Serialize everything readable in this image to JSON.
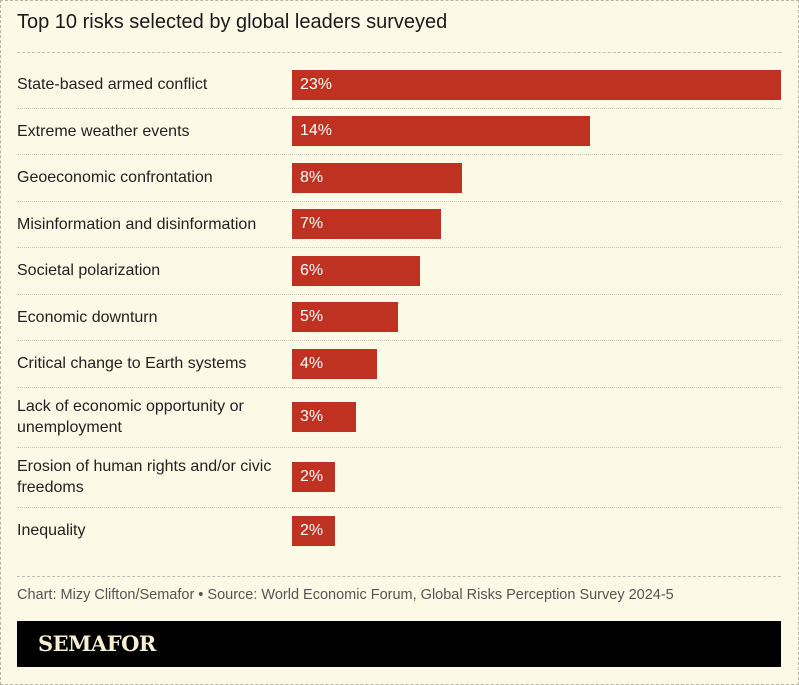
{
  "chart_data": {
    "type": "bar",
    "orientation": "horizontal",
    "title": "Top 10 risks selected by global leaders surveyed",
    "categories": [
      "State-based armed conflict",
      "Extreme weather events",
      "Geoeconomic confrontation",
      "Misinformation and disinformation",
      "Societal polarization",
      "Economic downturn",
      "Critical change to Earth systems",
      "Lack of economic opportunity or unemployment",
      "Erosion of human rights and/or civic freedoms",
      "Inequality"
    ],
    "values": [
      23,
      14,
      8,
      7,
      6,
      5,
      4,
      3,
      2,
      2
    ],
    "value_labels": [
      "23%",
      "14%",
      "8%",
      "7%",
      "6%",
      "5%",
      "4%",
      "3%",
      "2%",
      "2%"
    ],
    "unit": "%",
    "bar_color": "#bf3222",
    "grid": false
  },
  "source": "Chart: Mizy Clifton/Semafor • Source: World Economic Forum, Global Risks Perception Survey 2024-5",
  "brand": "SEMAFOR"
}
